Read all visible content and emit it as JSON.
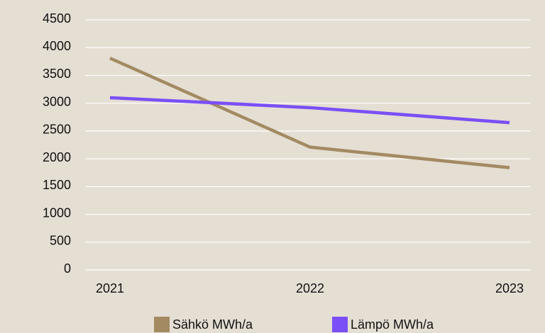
{
  "chart_data": {
    "type": "line",
    "categories": [
      "2021",
      "2022",
      "2023"
    ],
    "series": [
      {
        "name": "Sähkö MWh/a",
        "color": "#a38a62",
        "values": [
          3810,
          2210,
          1840
        ]
      },
      {
        "name": "Lämpö MWh/a",
        "color": "#7a4ff5",
        "values": [
          3100,
          2920,
          2650
        ]
      }
    ],
    "ylim": [
      0,
      4500
    ],
    "yticks": [
      0,
      500,
      1000,
      1500,
      2000,
      2500,
      3000,
      3500,
      4000,
      4500
    ],
    "grid": true,
    "legend": "bottom"
  }
}
